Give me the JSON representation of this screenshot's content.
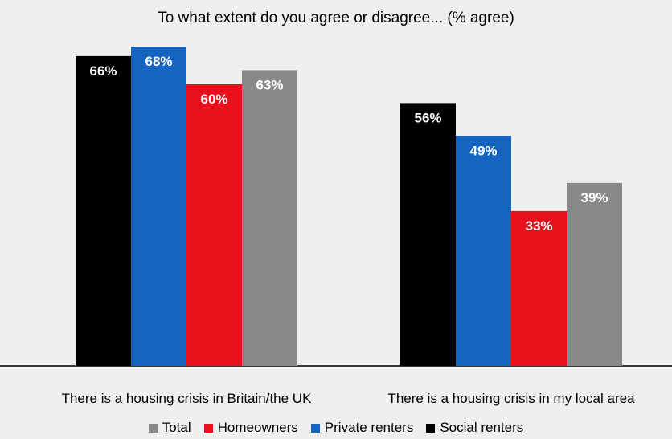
{
  "chart_data": {
    "type": "bar",
    "title": "To what extent do you agree or disagree... (% agree)",
    "categories": [
      "There is a housing crisis in Britain/the UK",
      "There is a housing crisis in my local area"
    ],
    "series": [
      {
        "name": "Social renters",
        "color": "#000000",
        "values": [
          66,
          56
        ],
        "labels": [
          "66%",
          "56%"
        ],
        "label_color": "#ffffff"
      },
      {
        "name": "Private renters",
        "color": "#1565c0",
        "values": [
          68,
          49
        ],
        "labels": [
          "68%",
          "49%"
        ],
        "label_color": "#ffffff"
      },
      {
        "name": "Homeowners",
        "color": "#e8101a",
        "values": [
          60,
          33
        ],
        "labels": [
          "60%",
          "33%"
        ],
        "label_color": "#ffffff"
      },
      {
        "name": "Total",
        "color": "#888888",
        "values": [
          63,
          39
        ],
        "labels": [
          "63%",
          "39%"
        ],
        "label_color": "#ffffff"
      }
    ],
    "legend_order": [
      "Total",
      "Homeowners",
      "Private renters",
      "Social renters"
    ],
    "ylim": [
      0,
      100
    ],
    "grid": false,
    "legend_position": "bottom"
  }
}
